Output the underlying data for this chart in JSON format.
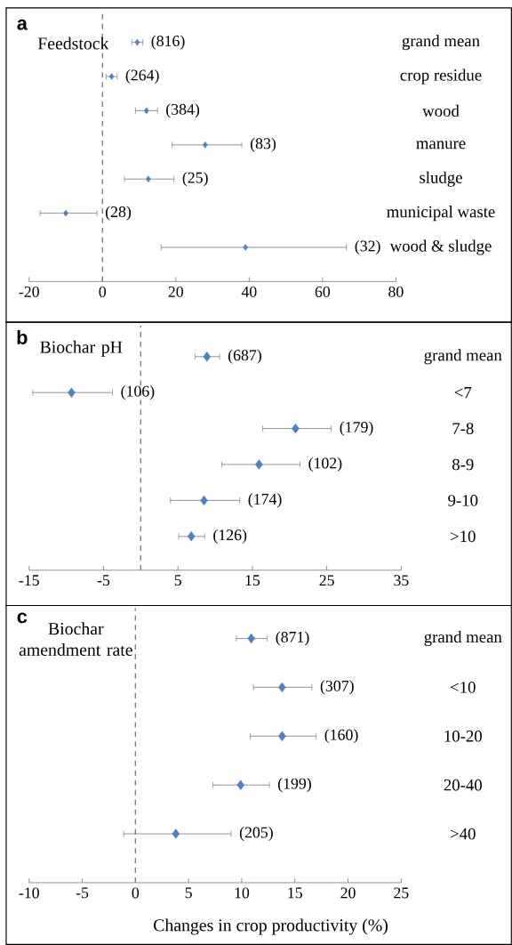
{
  "chart_data": [
    {
      "type": "scatter",
      "orientation": "horizontal",
      "title": "a",
      "subtitle": "Feedstock",
      "categories": [
        "grand mean",
        "crop residue",
        "wood",
        "manure",
        "sludge",
        "municipal waste",
        "wood & sludge"
      ],
      "values": [
        9.5,
        2.5,
        12,
        28,
        12.5,
        -10,
        39
      ],
      "errors": [
        [
          8,
          11
        ],
        [
          1,
          4
        ],
        [
          9,
          15
        ],
        [
          19,
          38
        ],
        [
          6,
          19.5
        ],
        [
          -17,
          -1.5
        ],
        [
          16,
          66.5
        ]
      ],
      "color": "#4f81bd",
      "marker": "diamond",
      "xlim": [
        -20,
        80
      ],
      "xticks": [
        -20,
        0,
        20,
        40,
        60,
        80
      ],
      "ref_lines": [
        {
          "axis": "x",
          "value": 0,
          "line_style": "dashed",
          "color": "#7f7f7f"
        }
      ],
      "annotations": [
        "(816)",
        "(264)",
        "(384)",
        "(83)",
        "(25)",
        "(28)",
        "(32)"
      ]
    },
    {
      "type": "scatter",
      "orientation": "horizontal",
      "title": "b",
      "subtitle": "Biochar pH",
      "categories": [
        "grand mean",
        "<7",
        "7-8",
        "8-9",
        "9-10",
        ">10"
      ],
      "values": [
        8.9,
        -9.3,
        20.8,
        15.9,
        8.5,
        6.8
      ],
      "errors": [
        [
          7.3,
          10.6
        ],
        [
          -14.5,
          -3.8
        ],
        [
          16.4,
          25.6
        ],
        [
          10.9,
          21.4
        ],
        [
          4,
          13.3
        ],
        [
          5.1,
          8.6
        ]
      ],
      "color": "#4f81bd",
      "marker": "diamond",
      "xlim": [
        -15,
        35
      ],
      "xticks": [
        -15,
        -5,
        5,
        15,
        25,
        35
      ],
      "ref_lines": [
        {
          "axis": "x",
          "value": 0,
          "line_style": "dashed",
          "color": "#7f7f7f"
        }
      ],
      "annotations": [
        "(687)",
        "(106)",
        "(179)",
        "(102)",
        "(174)",
        "(126)"
      ]
    },
    {
      "type": "scatter",
      "orientation": "horizontal",
      "title": "c",
      "subtitle": "Biochar amendment rate",
      "xlabel": "Changes in crop productivity (%)",
      "categories": [
        "grand mean",
        "<10",
        "10-20",
        "20-40",
        ">40"
      ],
      "values": [
        10.9,
        13.8,
        13.8,
        9.9,
        3.8
      ],
      "errors": [
        [
          9.5,
          12.4
        ],
        [
          11.1,
          16.6
        ],
        [
          10.8,
          17
        ],
        [
          7.3,
          12.6
        ],
        [
          -1.1,
          9
        ]
      ],
      "color": "#4f81bd",
      "marker": "diamond",
      "xlim": [
        -10,
        25
      ],
      "xticks": [
        -10,
        -5,
        0,
        5,
        10,
        15,
        20,
        25
      ],
      "ref_lines": [
        {
          "axis": "x",
          "value": 0,
          "line_style": "dashed",
          "color": "#7f7f7f"
        }
      ],
      "annotations": [
        "(871)",
        "(307)",
        "(160)",
        "(199)",
        "(205)"
      ]
    }
  ]
}
